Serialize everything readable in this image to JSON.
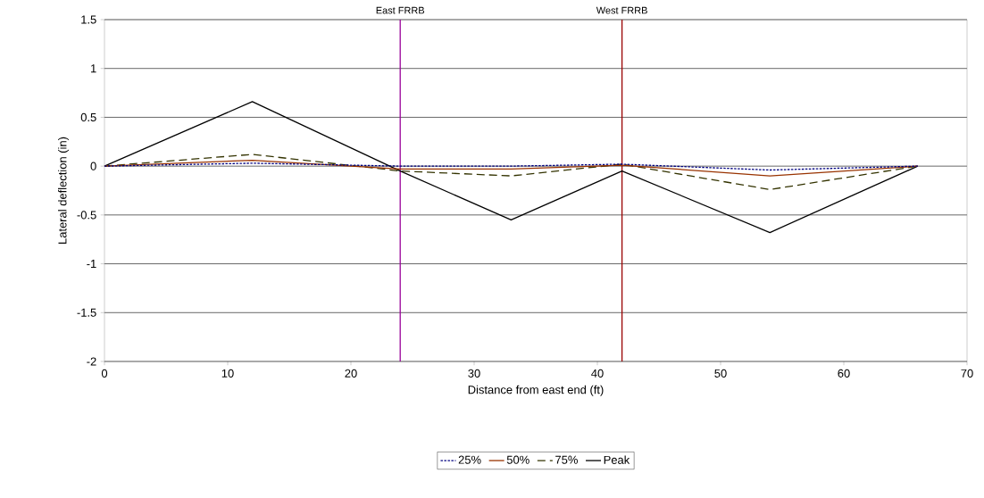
{
  "chart_data": {
    "type": "line",
    "xlabel": "Distance from east end (ft)",
    "ylabel": "Lateral deflection (in)",
    "x": [
      0,
      12,
      24,
      33,
      42,
      54,
      66
    ],
    "series": [
      {
        "name": "25%",
        "color": "#000080",
        "line_style": "dotted",
        "values": [
          0,
          0.03,
          0.0,
          0.0,
          0.02,
          -0.04,
          0
        ]
      },
      {
        "name": "50%",
        "color": "#993300",
        "line_style": "solid",
        "values": [
          0,
          0.06,
          -0.03,
          -0.03,
          0.01,
          -0.1,
          0
        ]
      },
      {
        "name": "75%",
        "color": "#333300",
        "line_style": "dashed",
        "values": [
          0,
          0.12,
          -0.05,
          -0.1,
          0.02,
          -0.24,
          0
        ]
      },
      {
        "name": "Peak",
        "color": "#000000",
        "line_style": "solid",
        "values": [
          0,
          0.66,
          -0.05,
          -0.55,
          -0.05,
          -0.68,
          0
        ]
      }
    ],
    "ref_lines": [
      {
        "axis": "x",
        "value": 24,
        "label": "East FRRB",
        "color": "#990099"
      },
      {
        "axis": "x",
        "value": 42,
        "label": "West FRRB",
        "color": "#990000"
      }
    ],
    "xlim": [
      0,
      70
    ],
    "xticks": [
      0,
      10,
      20,
      30,
      40,
      50,
      60,
      70
    ],
    "ylim": [
      -2,
      1.5
    ],
    "yticks": [
      -2,
      -1.5,
      -1,
      -0.5,
      0,
      0.5,
      1,
      1.5
    ],
    "grid": "y",
    "legend": "bottom",
    "marker": "none"
  }
}
